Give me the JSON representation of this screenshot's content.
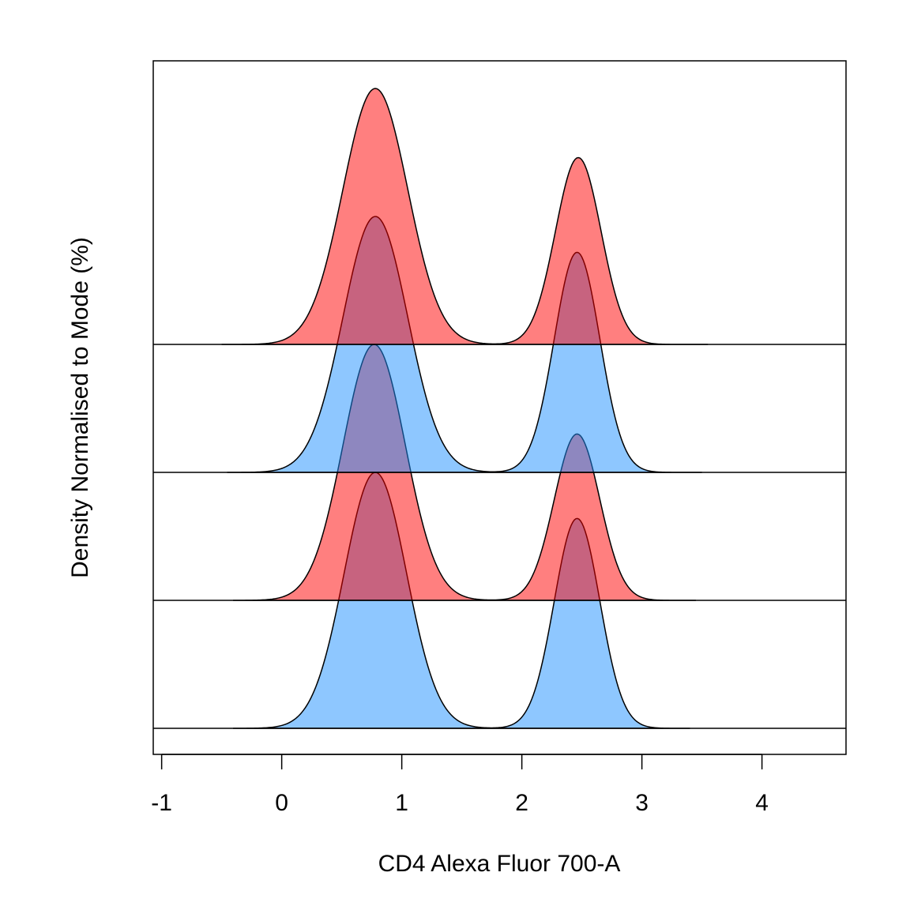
{
  "chart_data": {
    "type": "area",
    "xlabel": "CD4 Alexa Fluor 700-A",
    "ylabel": "Density Normalised to Mode (%)",
    "xlim": [
      -1.07,
      4.7
    ],
    "x_ticks": [
      -1,
      0,
      1,
      2,
      3,
      4
    ],
    "x_tick_labels": [
      "-1",
      "0",
      "1",
      "2",
      "3",
      "4"
    ],
    "grid": false,
    "legend": "none",
    "layout": "stacked-offset",
    "series": [
      {
        "fill": "#1E90FF",
        "opacity": 0.5,
        "baseline_level": 0,
        "x_range": [
          -0.4,
          3.4
        ],
        "peaks": [
          {
            "center": 0.78,
            "sigma": 0.26,
            "height": 1.0
          },
          {
            "center": 2.46,
            "sigma": 0.19,
            "height": 0.82
          }
        ]
      },
      {
        "fill": "#FF0000",
        "opacity": 0.5,
        "baseline_level": 1,
        "x_range": [
          -0.4,
          3.45
        ],
        "peaks": [
          {
            "center": 0.77,
            "sigma": 0.26,
            "height": 1.0
          },
          {
            "center": 2.46,
            "sigma": 0.19,
            "height": 0.65
          }
        ]
      },
      {
        "fill": "#1E90FF",
        "opacity": 0.5,
        "baseline_level": 2,
        "x_range": [
          -0.45,
          3.5
        ],
        "peaks": [
          {
            "center": 0.78,
            "sigma": 0.27,
            "height": 1.0
          },
          {
            "center": 2.46,
            "sigma": 0.19,
            "height": 0.86
          }
        ]
      },
      {
        "fill": "#FF0000",
        "opacity": 0.5,
        "baseline_level": 3,
        "x_range": [
          -0.5,
          3.55
        ],
        "peaks": [
          {
            "center": 0.78,
            "sigma": 0.27,
            "height": 1.0
          },
          {
            "center": 2.47,
            "sigma": 0.19,
            "height": 0.73
          }
        ]
      }
    ]
  }
}
